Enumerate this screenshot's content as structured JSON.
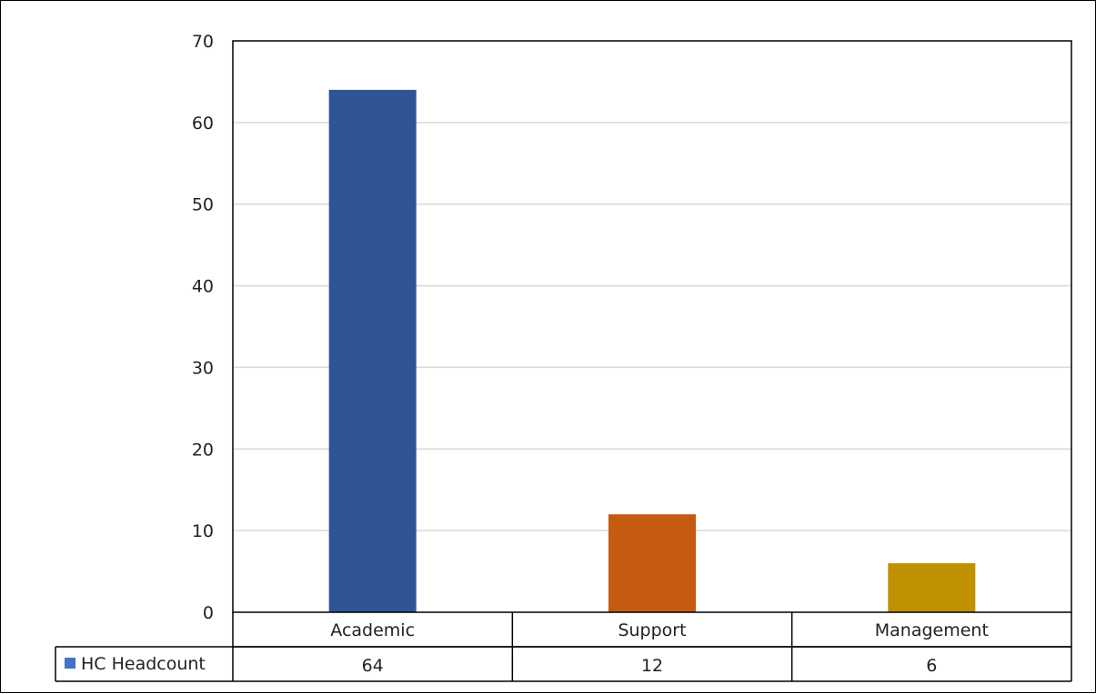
{
  "chart_data": {
    "type": "bar",
    "categories": [
      "Academic",
      "Support",
      "Management"
    ],
    "series": [
      {
        "name": "HC Headcount",
        "values": [
          64,
          12,
          6
        ],
        "colors": [
          "#2f5597",
          "#c55a11",
          "#bf9000"
        ],
        "legend_color": "#4472c4"
      }
    ],
    "ylim": [
      0,
      70
    ],
    "yticks": [
      0,
      10,
      20,
      30,
      40,
      50,
      60,
      70
    ],
    "grid": true,
    "data_table": true,
    "title": "",
    "xlabel": "",
    "ylabel": ""
  }
}
